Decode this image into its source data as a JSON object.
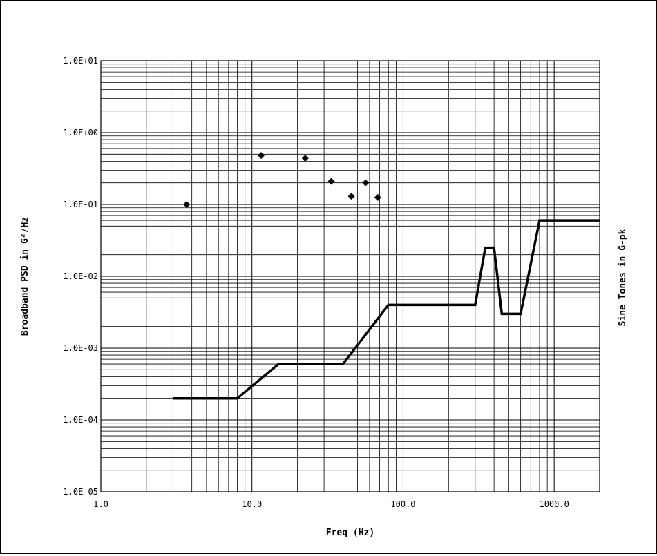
{
  "chart_data": {
    "type": "line",
    "xlabel": "Freq (Hz)",
    "ylabel": "Broadband PSD in G²/Hz",
    "ylabel_right": "Sine Tones in G-pk",
    "xscale": "log",
    "yscale": "log",
    "xlim": [
      1,
      2000
    ],
    "ylim": [
      1e-05,
      10
    ],
    "grid": true,
    "x_tick_labels": [
      "1.0",
      "10.0",
      "100.0",
      "1000.0"
    ],
    "x_tick_values": [
      1,
      10,
      100,
      1000
    ],
    "y_tick_labels": [
      "1.0E-05",
      "1.0E-04",
      "1.0E-03",
      "1.0E-02",
      "1.0E-01",
      "1.0E+00",
      "1.0E+01"
    ],
    "y_tick_values": [
      1e-05,
      0.0001,
      0.001,
      0.01,
      0.1,
      1,
      10
    ],
    "series": [
      {
        "kind": "line",
        "x": [
          3,
          8,
          15,
          40,
          80,
          300,
          350,
          400,
          450,
          600,
          800,
          2000
        ],
        "y": [
          0.0002,
          0.0002,
          0.0006,
          0.0006,
          0.004,
          0.004,
          0.025,
          0.025,
          0.003,
          0.003,
          0.06,
          0.06
        ]
      },
      {
        "kind": "scatter",
        "marker": "diamond",
        "x": [
          3.7,
          11.5,
          22.5,
          33.5,
          45.5,
          56.5,
          68
        ],
        "y": [
          0.1,
          0.48,
          0.44,
          0.21,
          0.13,
          0.2,
          0.125
        ]
      }
    ]
  },
  "colors": {
    "line": "#000000",
    "grid": "#000000",
    "background": "#ffffff"
  }
}
